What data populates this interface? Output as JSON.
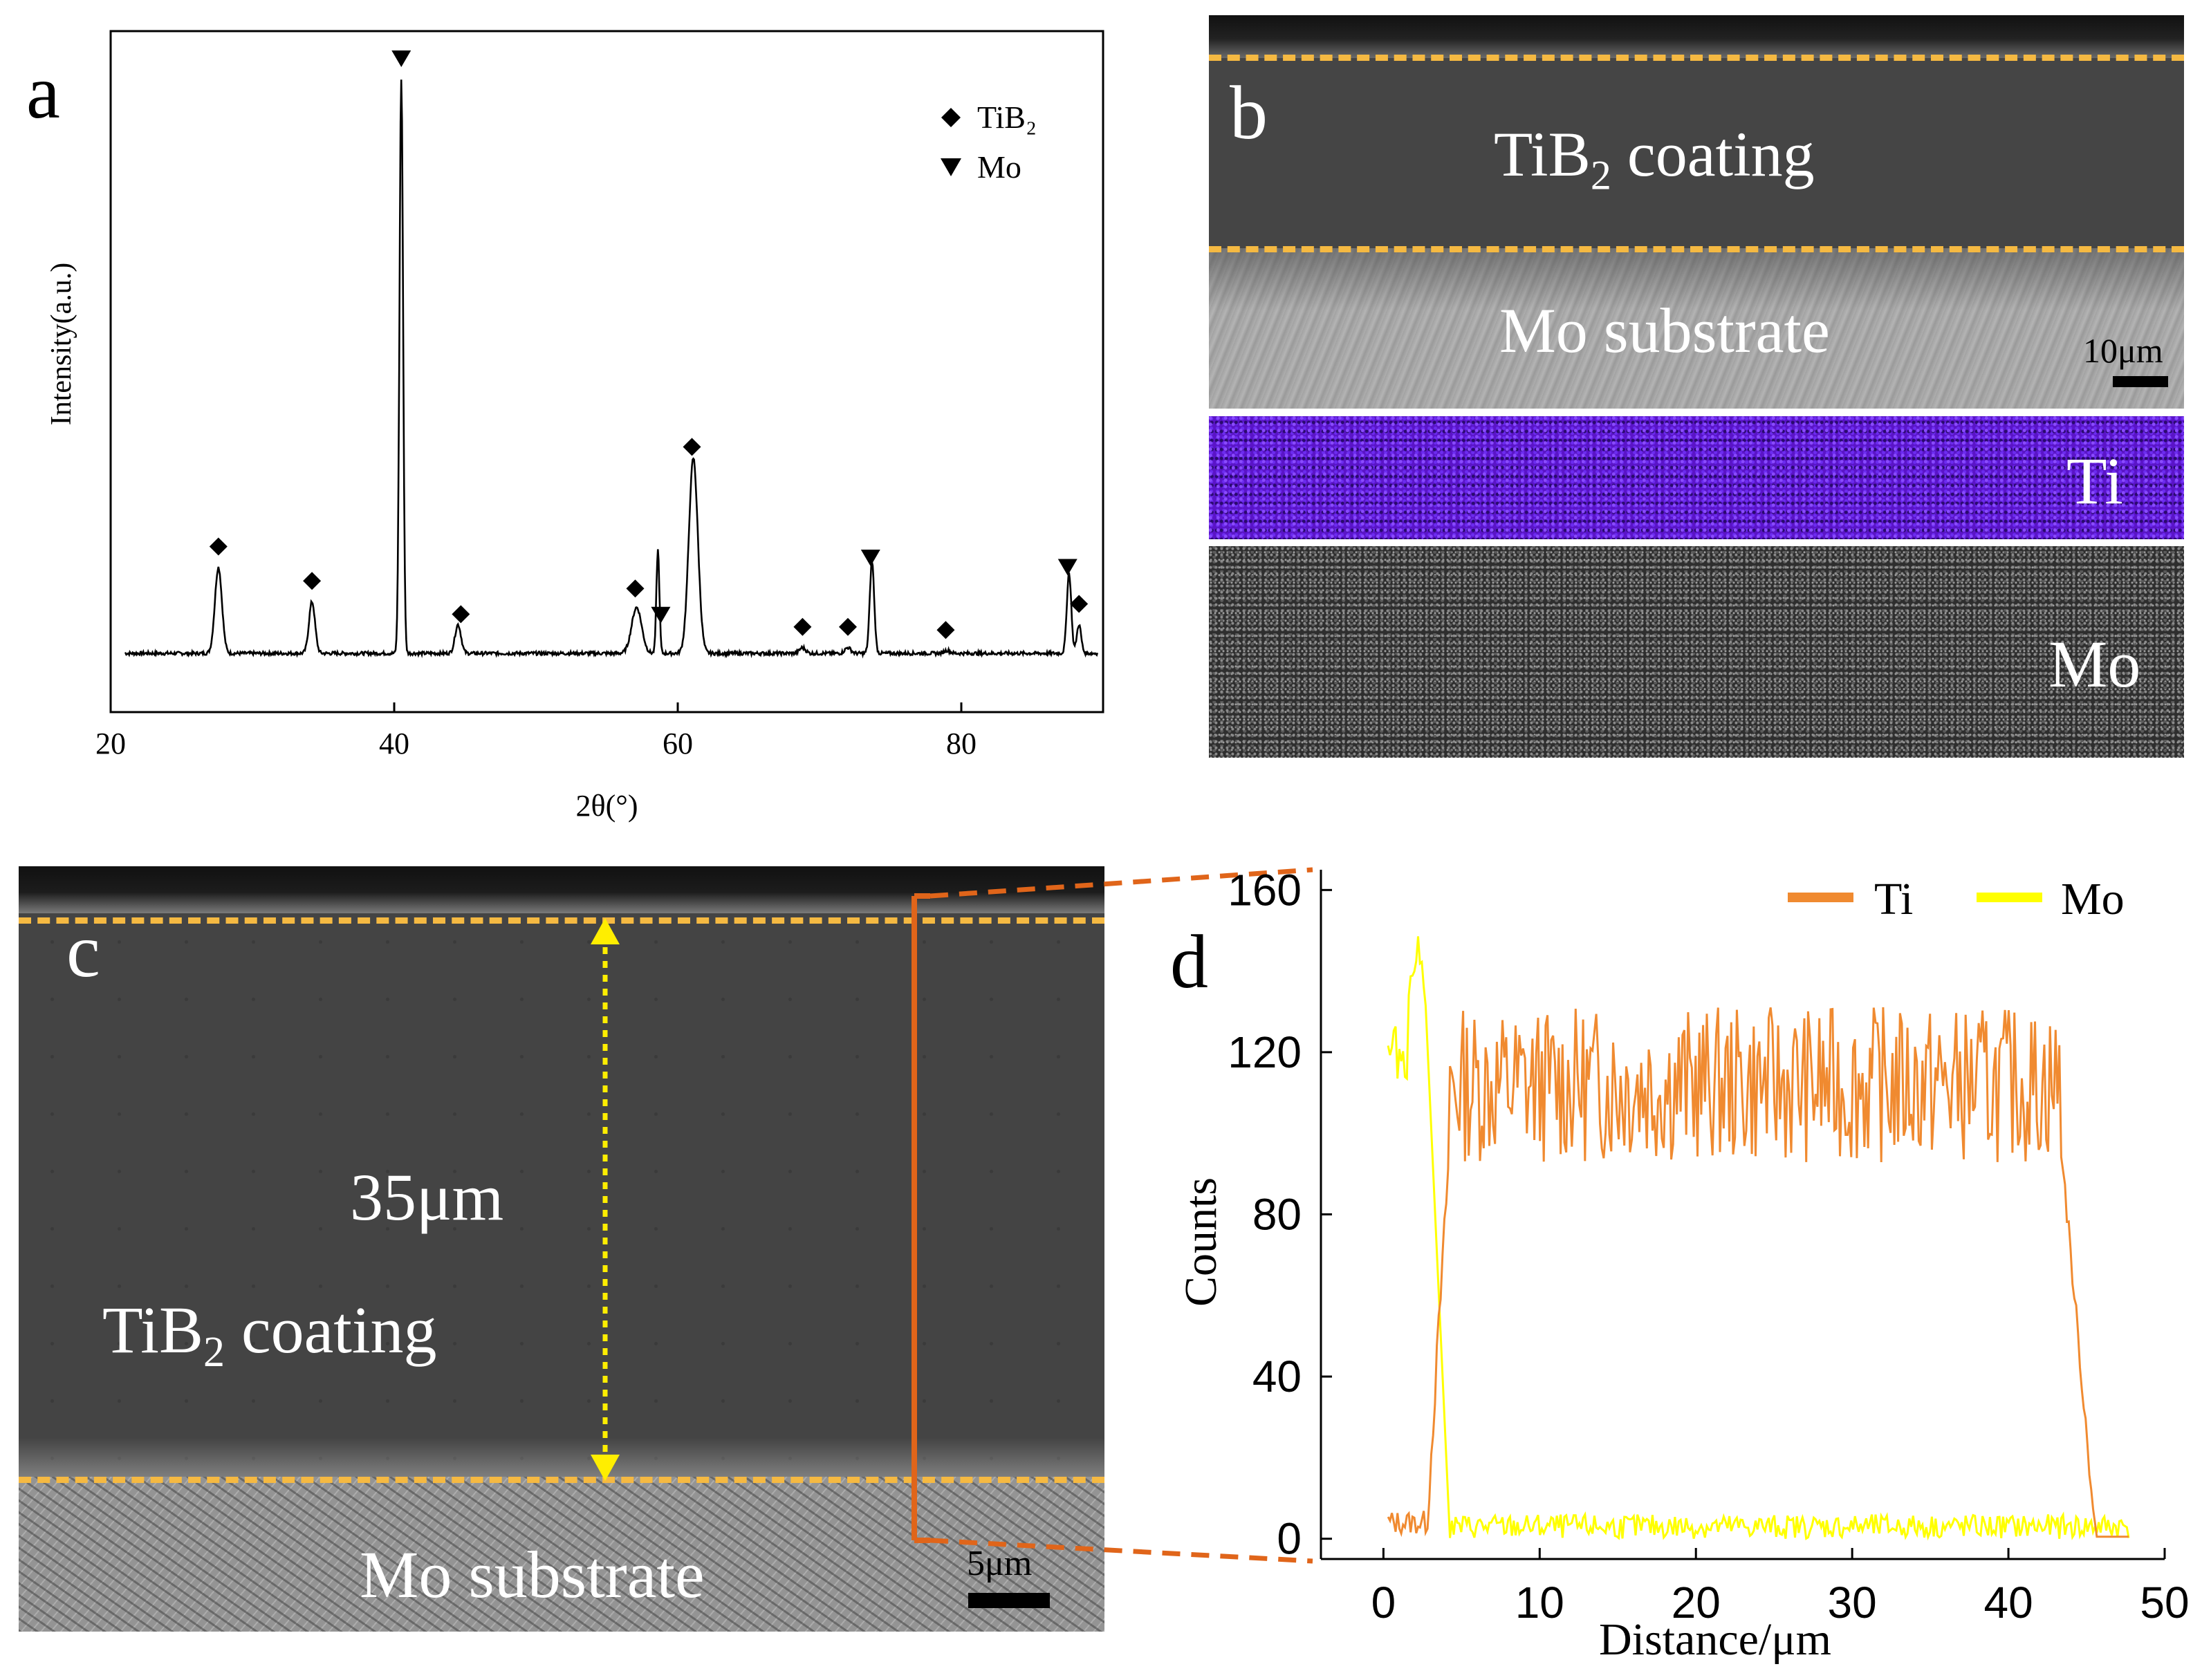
{
  "panel_a": {
    "letter": "a",
    "legend": [
      {
        "marker": "diamond",
        "label": "TiB₂"
      },
      {
        "marker": "triangle-down",
        "label": "Mo"
      }
    ]
  },
  "panel_b": {
    "letter": "b",
    "coating_label_main": "TiB",
    "coating_label_sub": "2",
    "coating_label_rest": " coating",
    "substrate_label": "Mo substrate",
    "scale_label": "10μm",
    "map_ti_label": "Ti",
    "map_mo_label": "Mo",
    "colors": {
      "ti_map": "#5a14c8",
      "mo_map": "#3a3a3a",
      "coating": "#454545",
      "substrate": "#a8a8a8",
      "interface_dash": "#f5b942"
    }
  },
  "panel_c": {
    "letter": "c",
    "thickness_label": "35μm",
    "coating_label_main": "TiB",
    "coating_label_sub": "2",
    "coating_label_rest": " coating",
    "substrate_label": "Mo substrate",
    "scale_label": "5μm",
    "colors": {
      "coating": "#444444",
      "substrate": "#9a9a9a",
      "arrow": "#ffee00",
      "line_scan": "#e0651a"
    }
  },
  "panel_d": {
    "letter": "d"
  },
  "chart_data": [
    {
      "id": "xrd",
      "type": "line",
      "xlabel": "2θ(°)",
      "ylabel": "Intensity(a.u.)",
      "xlim": [
        20,
        90
      ],
      "xticks": [
        20,
        40,
        60,
        80
      ],
      "yticks": [],
      "grid": false,
      "legend_position": "top-right",
      "series": [
        {
          "name": "XRD pattern",
          "color": "#000000",
          "peaks": [
            {
              "x": 27.6,
              "height": 0.15,
              "width": 0.35,
              "phase": "TiB₂"
            },
            {
              "x": 34.2,
              "height": 0.09,
              "width": 0.3,
              "phase": "TiB₂"
            },
            {
              "x": 40.5,
              "height": 1.0,
              "width": 0.18,
              "phase": "Mo"
            },
            {
              "x": 44.5,
              "height": 0.05,
              "width": 0.3,
              "phase": "TiB₂"
            },
            {
              "x": 57.1,
              "height": 0.08,
              "width": 0.5,
              "phase": "TiB₂"
            },
            {
              "x": 58.6,
              "height": 0.18,
              "width": 0.15,
              "phase": "Mo"
            },
            {
              "x": 61.1,
              "height": 0.34,
              "width": 0.45,
              "phase": "TiB₂"
            },
            {
              "x": 68.8,
              "height": 0.01,
              "width": 0.3,
              "phase": "TiB₂"
            },
            {
              "x": 72.0,
              "height": 0.01,
              "width": 0.3,
              "phase": "TiB₂"
            },
            {
              "x": 73.7,
              "height": 0.16,
              "width": 0.22,
              "phase": "Mo"
            },
            {
              "x": 79.0,
              "height": 0.005,
              "width": 0.3,
              "phase": "TiB₂"
            },
            {
              "x": 87.6,
              "height": 0.14,
              "width": 0.22,
              "phase": "Mo"
            },
            {
              "x": 88.3,
              "height": 0.05,
              "width": 0.22,
              "phase": "TiB₂"
            }
          ],
          "baseline": 0.0
        }
      ],
      "markers": [
        {
          "x": 27.6,
          "type": "diamond"
        },
        {
          "x": 34.2,
          "type": "diamond"
        },
        {
          "x": 40.5,
          "type": "triangle-down"
        },
        {
          "x": 44.7,
          "type": "diamond"
        },
        {
          "x": 57.0,
          "type": "diamond"
        },
        {
          "x": 58.8,
          "type": "triangle-down"
        },
        {
          "x": 61.0,
          "type": "diamond"
        },
        {
          "x": 68.8,
          "type": "diamond"
        },
        {
          "x": 72.0,
          "type": "diamond"
        },
        {
          "x": 73.6,
          "type": "triangle-down"
        },
        {
          "x": 78.9,
          "type": "diamond"
        },
        {
          "x": 87.5,
          "type": "triangle-down"
        },
        {
          "x": 88.3,
          "type": "diamond"
        }
      ]
    },
    {
      "id": "linescan",
      "type": "line",
      "xlabel": "Distance/μm",
      "ylabel": "Counts",
      "xlim": [
        -4,
        50
      ],
      "ylim": [
        -5,
        165
      ],
      "xticks": [
        0,
        10,
        20,
        30,
        40,
        50
      ],
      "yticks": [
        0,
        40,
        80,
        120,
        160
      ],
      "grid": false,
      "legend_position": "top-right",
      "series": [
        {
          "name": "Ti",
          "color": "#f08a30",
          "profile": {
            "x_start": 0.3,
            "x_rise": 3.6,
            "x_fall": 44.8,
            "x_end": 47.8,
            "low": 4,
            "plateau": 112,
            "noise": 12
          }
        },
        {
          "name": "Mo",
          "color": "#ffff00",
          "profile": {
            "x_start": 0.3,
            "x_drop": 3.6,
            "x_end": 47.8,
            "high": 130,
            "peak": 146,
            "peak_x": 2.2,
            "low": 3,
            "noise": 2
          }
        }
      ]
    }
  ]
}
